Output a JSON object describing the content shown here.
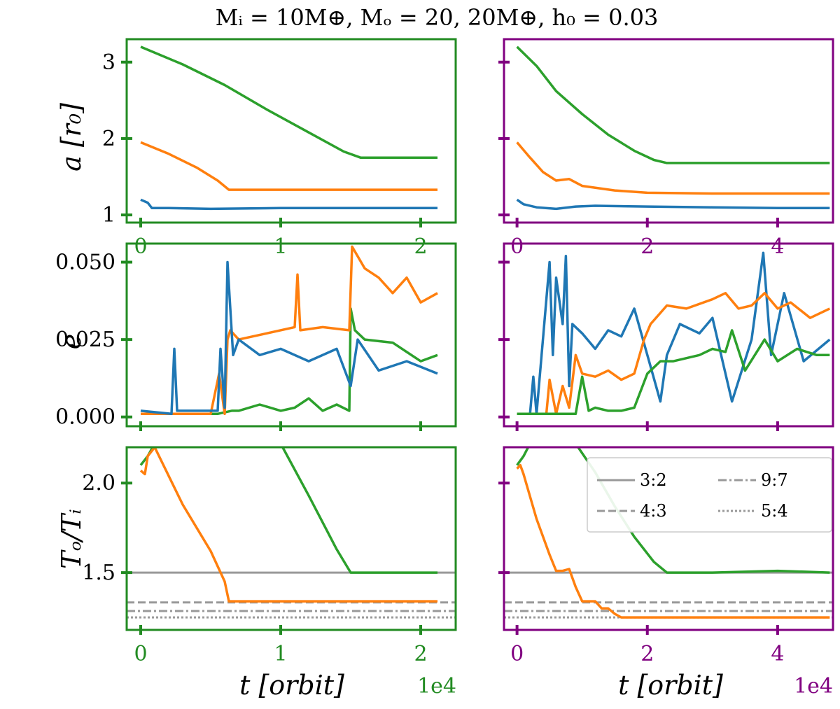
{
  "title": "Mᵢ = 10M⊕, Mₒ = 20, 20M⊕, h₀ = 0.03",
  "colors": {
    "left_frame": "#228b22",
    "right_frame": "#800080",
    "inner": "#1f77b4",
    "middle": "#ff7f0e",
    "outer": "#2ca02c",
    "reference": "#999999"
  },
  "axis_labels": {
    "row0_ylabel": "a [r₀]",
    "row1_ylabel": "e",
    "row2_ylabel": "Tₒ/Tᵢ",
    "xlabel": "t [orbit]",
    "x_offset": "1e4"
  },
  "legend": {
    "entries": [
      {
        "label": "3:2",
        "style": "solid"
      },
      {
        "label": "9:7",
        "style": "dashdot"
      },
      {
        "label": "4:3",
        "style": "dashed"
      },
      {
        "label": "5:4",
        "style": "dotted"
      }
    ]
  },
  "chart_data": [
    {
      "type": "line",
      "panel": "left-a",
      "xlim": [
        -0.1,
        2.25
      ],
      "ylim": [
        0.9,
        3.3
      ],
      "xticks": [
        0,
        1,
        2
      ],
      "xticklabels": [
        "0",
        "1",
        "2"
      ],
      "yticks": [
        1,
        2,
        3
      ],
      "yticklabels": [
        "1",
        "2",
        "3"
      ],
      "ylabel": "a [r₀]",
      "series": [
        {
          "color": "inner",
          "x": [
            0,
            0.05,
            0.08,
            0.2,
            0.5,
            1.0,
            1.5,
            2.12
          ],
          "y": [
            1.2,
            1.16,
            1.09,
            1.09,
            1.08,
            1.09,
            1.09,
            1.09
          ]
        },
        {
          "color": "middle",
          "x": [
            0,
            0.2,
            0.4,
            0.55,
            0.63,
            0.8,
            1.2,
            1.6,
            2.12
          ],
          "y": [
            1.95,
            1.8,
            1.62,
            1.45,
            1.33,
            1.33,
            1.33,
            1.33,
            1.33
          ]
        },
        {
          "color": "outer",
          "x": [
            0,
            0.3,
            0.6,
            0.9,
            1.2,
            1.45,
            1.57,
            1.8,
            2.12
          ],
          "y": [
            3.2,
            2.97,
            2.7,
            2.38,
            2.08,
            1.83,
            1.75,
            1.75,
            1.75
          ]
        }
      ]
    },
    {
      "type": "line",
      "panel": "right-a",
      "xlim": [
        -0.2,
        4.85
      ],
      "ylim": [
        0.9,
        3.3
      ],
      "xticks": [
        0,
        2,
        4
      ],
      "xticklabels": [
        "0",
        "2",
        "4"
      ],
      "yticks": [
        1,
        2,
        3
      ],
      "yticklabels": [
        "",
        "",
        ""
      ],
      "series": [
        {
          "color": "inner",
          "x": [
            0,
            0.1,
            0.3,
            0.6,
            0.9,
            1.2,
            2.0,
            3.0,
            4.0,
            4.8
          ],
          "y": [
            1.2,
            1.14,
            1.1,
            1.08,
            1.11,
            1.12,
            1.11,
            1.1,
            1.09,
            1.09
          ]
        },
        {
          "color": "middle",
          "x": [
            0,
            0.2,
            0.4,
            0.6,
            0.8,
            1.0,
            1.5,
            2.0,
            3.0,
            4.0,
            4.8
          ],
          "y": [
            1.95,
            1.75,
            1.56,
            1.45,
            1.47,
            1.38,
            1.32,
            1.29,
            1.28,
            1.28,
            1.28
          ]
        },
        {
          "color": "outer",
          "x": [
            0,
            0.3,
            0.6,
            1.0,
            1.4,
            1.8,
            2.1,
            2.3,
            3.0,
            4.0,
            4.8
          ],
          "y": [
            3.2,
            2.95,
            2.62,
            2.32,
            2.05,
            1.84,
            1.72,
            1.68,
            1.68,
            1.68,
            1.68
          ]
        }
      ]
    },
    {
      "type": "line",
      "panel": "left-e",
      "xlim": [
        -0.1,
        2.25
      ],
      "ylim": [
        -0.003,
        0.056
      ],
      "xticks": [
        0,
        1,
        2
      ],
      "xticklabels": [
        "",
        "",
        ""
      ],
      "yticks": [
        0.0,
        0.025,
        0.05
      ],
      "yticklabels": [
        "0.000",
        "0.025",
        "0.050"
      ],
      "ylabel": "e",
      "series": [
        {
          "color": "outer",
          "x": [
            0,
            0.55,
            0.65,
            0.7,
            0.85,
            1.0,
            1.1,
            1.2,
            1.3,
            1.4,
            1.49,
            1.5,
            1.53,
            1.6,
            1.8,
            2.0,
            2.12
          ],
          "y": [
            0.001,
            0.001,
            0.002,
            0.002,
            0.004,
            0.002,
            0.003,
            0.006,
            0.002,
            0.004,
            0.002,
            0.035,
            0.028,
            0.025,
            0.024,
            0.018,
            0.02
          ]
        },
        {
          "color": "middle",
          "x": [
            0,
            0.5,
            0.56,
            0.6,
            0.62,
            0.64,
            0.7,
            0.9,
            1.1,
            1.12,
            1.14,
            1.3,
            1.49,
            1.51,
            1.6,
            1.7,
            1.8,
            1.9,
            2.0,
            2.12
          ],
          "y": [
            0.001,
            0.001,
            0.014,
            0.001,
            0.025,
            0.028,
            0.025,
            0.027,
            0.029,
            0.046,
            0.028,
            0.029,
            0.028,
            0.055,
            0.048,
            0.045,
            0.04,
            0.045,
            0.037,
            0.04
          ]
        },
        {
          "color": "inner",
          "x": [
            0,
            0.22,
            0.24,
            0.26,
            0.55,
            0.57,
            0.6,
            0.62,
            0.66,
            0.7,
            0.85,
            1.0,
            1.2,
            1.4,
            1.5,
            1.55,
            1.7,
            1.9,
            2.12
          ],
          "y": [
            0.002,
            0.001,
            0.022,
            0.002,
            0.002,
            0.022,
            0.003,
            0.05,
            0.02,
            0.025,
            0.02,
            0.022,
            0.018,
            0.022,
            0.01,
            0.025,
            0.015,
            0.018,
            0.014
          ]
        }
      ]
    },
    {
      "type": "line",
      "panel": "right-e",
      "xlim": [
        -0.2,
        4.85
      ],
      "ylim": [
        -0.003,
        0.056
      ],
      "xticks": [
        0,
        2,
        4
      ],
      "xticklabels": [
        "",
        "",
        ""
      ],
      "yticks": [
        0.0,
        0.025,
        0.05
      ],
      "yticklabels": [
        "",
        "",
        ""
      ],
      "series": [
        {
          "color": "inner",
          "x": [
            0,
            0.2,
            0.25,
            0.3,
            0.5,
            0.55,
            0.6,
            0.7,
            0.75,
            0.8,
            0.85,
            1.0,
            1.2,
            1.4,
            1.6,
            1.8,
            2.0,
            2.2,
            2.3,
            2.5,
            2.8,
            3.0,
            3.3,
            3.6,
            3.78,
            3.9,
            4.1,
            4.4,
            4.8
          ],
          "y": [
            0.001,
            0.001,
            0.013,
            0.001,
            0.05,
            0.02,
            0.045,
            0.03,
            0.052,
            0.01,
            0.03,
            0.027,
            0.022,
            0.028,
            0.026,
            0.035,
            0.02,
            0.005,
            0.02,
            0.03,
            0.027,
            0.032,
            0.005,
            0.025,
            0.053,
            0.02,
            0.04,
            0.018,
            0.025
          ]
        },
        {
          "color": "middle",
          "x": [
            0,
            0.45,
            0.5,
            0.6,
            0.7,
            0.8,
            0.9,
            1.0,
            1.2,
            1.4,
            1.6,
            1.8,
            1.95,
            2.05,
            2.3,
            2.6,
            3.0,
            3.2,
            3.4,
            3.6,
            3.8,
            4.0,
            4.2,
            4.5,
            4.8
          ],
          "y": [
            0.001,
            0.001,
            0.012,
            0.001,
            0.01,
            0.003,
            0.02,
            0.014,
            0.013,
            0.015,
            0.012,
            0.014,
            0.025,
            0.03,
            0.036,
            0.035,
            0.038,
            0.04,
            0.035,
            0.036,
            0.04,
            0.035,
            0.037,
            0.032,
            0.035
          ]
        },
        {
          "color": "outer",
          "x": [
            0,
            0.9,
            1.0,
            1.1,
            1.2,
            1.4,
            1.6,
            1.8,
            2.0,
            2.2,
            2.4,
            2.6,
            2.8,
            3.0,
            3.2,
            3.3,
            3.5,
            3.8,
            4.0,
            4.3,
            4.6,
            4.8
          ],
          "y": [
            0.001,
            0.001,
            0.013,
            0.002,
            0.003,
            0.002,
            0.002,
            0.003,
            0.014,
            0.018,
            0.018,
            0.019,
            0.02,
            0.022,
            0.021,
            0.028,
            0.015,
            0.025,
            0.018,
            0.022,
            0.02,
            0.02
          ]
        }
      ]
    },
    {
      "type": "line",
      "panel": "left-T",
      "xlim": [
        -0.1,
        2.25
      ],
      "ylim": [
        1.18,
        2.2
      ],
      "xticks": [
        0,
        1,
        2
      ],
      "xticklabels": [
        "0",
        "1",
        "2"
      ],
      "yticks": [
        1.5,
        2.0
      ],
      "yticklabels": [
        "1.5",
        "2.0"
      ],
      "ylabel": "Tₒ/Tᵢ",
      "xlabel": "t [orbit]",
      "x_offset": "1e4",
      "hlines": [
        {
          "y": 1.5,
          "style": "solid"
        },
        {
          "y": 1.3333,
          "style": "dashed"
        },
        {
          "y": 1.2857,
          "style": "dashdot"
        },
        {
          "y": 1.25,
          "style": "dotted"
        }
      ],
      "series": [
        {
          "color": "outer",
          "x": [
            0,
            0.05,
            0.1,
            1.0,
            1.2,
            1.4,
            1.5,
            1.7,
            2.12
          ],
          "y": [
            2.1,
            2.15,
            2.22,
            2.22,
            1.93,
            1.63,
            1.5,
            1.5,
            1.5
          ]
        },
        {
          "color": "middle",
          "x": [
            0,
            0.03,
            0.05,
            0.1,
            0.3,
            0.5,
            0.6,
            0.63,
            0.8,
            1.2,
            1.6,
            2.12
          ],
          "y": [
            2.07,
            2.05,
            2.15,
            2.2,
            1.88,
            1.62,
            1.45,
            1.34,
            1.34,
            1.34,
            1.34,
            1.34
          ]
        }
      ]
    },
    {
      "type": "line",
      "panel": "right-T",
      "xlim": [
        -0.2,
        4.85
      ],
      "ylim": [
        1.18,
        2.2
      ],
      "xticks": [
        0,
        2,
        4
      ],
      "xticklabels": [
        "0",
        "2",
        "4"
      ],
      "yticks": [
        1.5,
        2.0
      ],
      "yticklabels": [
        "",
        ""
      ],
      "xlabel": "t [orbit]",
      "x_offset": "1e4",
      "hlines": [
        {
          "y": 1.5,
          "style": "solid"
        },
        {
          "y": 1.3333,
          "style": "dashed"
        },
        {
          "y": 1.2857,
          "style": "dashdot"
        },
        {
          "y": 1.25,
          "style": "dotted"
        }
      ],
      "series": [
        {
          "color": "outer",
          "x": [
            0,
            0.1,
            0.2,
            0.9,
            1.2,
            1.5,
            1.8,
            2.1,
            2.3,
            3.0,
            4.0,
            4.8
          ],
          "y": [
            2.1,
            2.15,
            2.22,
            2.22,
            2.06,
            1.87,
            1.7,
            1.56,
            1.5,
            1.5,
            1.51,
            1.5
          ]
        },
        {
          "color": "middle",
          "x": [
            0,
            0.05,
            0.1,
            0.3,
            0.5,
            0.6,
            0.7,
            0.8,
            0.9,
            1.0,
            1.2,
            1.3,
            1.4,
            1.5,
            1.6,
            2.0,
            3.0,
            4.0,
            4.8
          ],
          "y": [
            2.08,
            2.1,
            2.05,
            1.8,
            1.6,
            1.51,
            1.51,
            1.52,
            1.42,
            1.34,
            1.34,
            1.3,
            1.3,
            1.27,
            1.25,
            1.25,
            1.25,
            1.25,
            1.25
          ]
        }
      ]
    }
  ]
}
